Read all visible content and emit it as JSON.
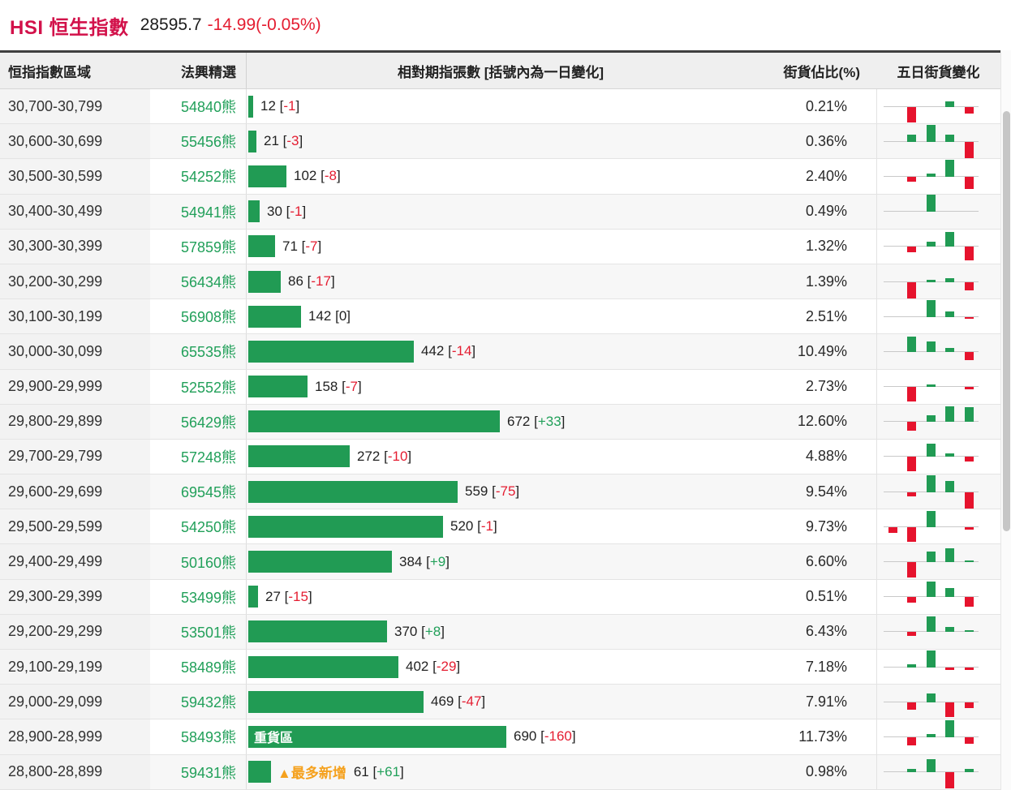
{
  "header": {
    "title": "HSI 恒生指數",
    "price": "28595.7",
    "change": "-14.99(-0.05%)"
  },
  "format": {
    "open": "[",
    "close": "]"
  },
  "table": {
    "columns": [
      "恒指指數區域",
      "法興精選",
      "相對期指張數 [括號內為一日變化]",
      "街貨佔比(%)",
      "五日街貨變化"
    ],
    "rows": [
      {
        "range": "30,700-30,799",
        "code": "54840熊",
        "contracts": 12,
        "change": "-1",
        "pct": "0.21%",
        "spark": [
          0,
          -19,
          0,
          7,
          -8
        ]
      },
      {
        "range": "30,600-30,699",
        "code": "55456熊",
        "contracts": 21,
        "change": "-3",
        "pct": "0.36%",
        "spark": [
          0,
          9,
          21,
          9,
          -21
        ]
      },
      {
        "range": "30,500-30,599",
        "code": "54252熊",
        "contracts": 102,
        "change": "-8",
        "pct": "2.40%",
        "spark": [
          0,
          -6,
          4,
          21,
          -15
        ]
      },
      {
        "range": "30,400-30,499",
        "code": "54941熊",
        "contracts": 30,
        "change": "-1",
        "pct": "0.49%",
        "spark": [
          0,
          0,
          21,
          0,
          0
        ]
      },
      {
        "range": "30,300-30,399",
        "code": "57859熊",
        "contracts": 71,
        "change": "-7",
        "pct": "1.32%",
        "spark": [
          0,
          -7,
          6,
          18,
          -17
        ]
      },
      {
        "range": "30,200-30,299",
        "code": "56434熊",
        "contracts": 86,
        "change": "-17",
        "pct": "1.39%",
        "spark": [
          0,
          -20,
          3,
          5,
          -10
        ]
      },
      {
        "range": "30,100-30,199",
        "code": "56908熊",
        "contracts": 142,
        "change": "0",
        "pct": "2.51%",
        "spark": [
          0,
          0,
          21,
          7,
          -2
        ]
      },
      {
        "range": "30,000-30,099",
        "code": "65535熊",
        "contracts": 442,
        "change": "-14",
        "pct": "10.49%",
        "spark": [
          0,
          19,
          13,
          5,
          -10
        ]
      },
      {
        "range": "29,900-29,999",
        "code": "52552熊",
        "contracts": 158,
        "change": "-7",
        "pct": "2.73%",
        "spark": [
          0,
          -18,
          3,
          0,
          -3
        ]
      },
      {
        "range": "29,800-29,899",
        "code": "56429熊",
        "contracts": 672,
        "change": "+33",
        "pct": "12.60%",
        "spark": [
          0,
          -11,
          8,
          19,
          18
        ]
      },
      {
        "range": "29,700-29,799",
        "code": "57248熊",
        "contracts": 272,
        "change": "-10",
        "pct": "4.88%",
        "spark": [
          0,
          -18,
          16,
          4,
          -6
        ]
      },
      {
        "range": "29,600-29,699",
        "code": "69545熊",
        "contracts": 559,
        "change": "-75",
        "pct": "9.54%",
        "spark": [
          0,
          -5,
          21,
          14,
          -21
        ]
      },
      {
        "range": "29,500-29,599",
        "code": "54250熊",
        "contracts": 520,
        "change": "-1",
        "pct": "9.73%",
        "spark": [
          -7,
          -18,
          20,
          0,
          -3
        ]
      },
      {
        "range": "29,400-29,499",
        "code": "50160熊",
        "contracts": 384,
        "change": "+9",
        "pct": "6.60%",
        "spark": [
          0,
          -19,
          13,
          17,
          2
        ]
      },
      {
        "range": "29,300-29,399",
        "code": "53499熊",
        "contracts": 27,
        "change": "-15",
        "pct": "0.51%",
        "spark": [
          0,
          -7,
          19,
          11,
          -12
        ]
      },
      {
        "range": "29,200-29,299",
        "code": "53501熊",
        "contracts": 370,
        "change": "+8",
        "pct": "6.43%",
        "spark": [
          0,
          -5,
          19,
          6,
          2
        ]
      },
      {
        "range": "29,100-29,199",
        "code": "58489熊",
        "contracts": 402,
        "change": "-29",
        "pct": "7.18%",
        "spark": [
          0,
          4,
          21,
          -3,
          -3
        ]
      },
      {
        "range": "29,000-29,099",
        "code": "59432熊",
        "contracts": 469,
        "change": "-47",
        "pct": "7.91%",
        "spark": [
          0,
          -9,
          11,
          -18,
          -7
        ]
      },
      {
        "range": "28,900-28,999",
        "code": "58493熊",
        "contracts": 690,
        "change": "-160",
        "pct": "11.73%",
        "spark": [
          0,
          -10,
          4,
          21,
          -8
        ],
        "bar_tag": "重貨區"
      },
      {
        "range": "28,800-28,899",
        "code": "59431熊",
        "contracts": 61,
        "change": "+61",
        "pct": "0.98%",
        "spark": [
          0,
          4,
          16,
          -20,
          4
        ],
        "note": "▲最多新增"
      }
    ],
    "max_contracts": 690
  },
  "colors": {
    "title_red": "#d2114a",
    "change_red": "#e41d31",
    "bar_green": "#219b54",
    "text_green": "#22a05a",
    "spark_red": "#e6132d",
    "note_orange": "#f5a11d"
  },
  "chart_data": {
    "type": "bar",
    "orientation": "horizontal",
    "title": "相對期指張數 [括號內為一日變化]",
    "categories": [
      "30,700-30,799",
      "30,600-30,699",
      "30,500-30,599",
      "30,400-30,499",
      "30,300-30,399",
      "30,200-30,299",
      "30,100-30,199",
      "30,000-30,099",
      "29,900-29,999",
      "29,800-29,899",
      "29,700-29,799",
      "29,600-29,699",
      "29,500-29,599",
      "29,400-29,499",
      "29,300-29,399",
      "29,200-29,299",
      "29,100-29,199",
      "29,000-29,099",
      "28,900-28,999",
      "28,800-28,899"
    ],
    "series": [
      {
        "name": "相對期指張數",
        "values": [
          12,
          21,
          102,
          30,
          71,
          86,
          142,
          442,
          158,
          672,
          272,
          559,
          520,
          384,
          27,
          370,
          402,
          469,
          690,
          61
        ]
      },
      {
        "name": "一日變化",
        "values": [
          -1,
          -3,
          -8,
          -1,
          -7,
          -17,
          0,
          -14,
          -7,
          33,
          -10,
          -75,
          -1,
          9,
          -15,
          8,
          -29,
          -47,
          -160,
          61
        ]
      },
      {
        "name": "街貨佔比(%)",
        "values": [
          0.21,
          0.36,
          2.4,
          0.49,
          1.32,
          1.39,
          2.51,
          10.49,
          2.73,
          12.6,
          4.88,
          9.54,
          9.73,
          6.6,
          0.51,
          6.43,
          7.18,
          7.91,
          11.73,
          0.98
        ]
      },
      {
        "name": "法興精選牛熊證",
        "values": [
          "54840熊",
          "55456熊",
          "54252熊",
          "54941熊",
          "57859熊",
          "56434熊",
          "56908熊",
          "65535熊",
          "52552熊",
          "56429熊",
          "57248熊",
          "69545熊",
          "54250熊",
          "50160熊",
          "53499熊",
          "53501熊",
          "58489熊",
          "59432熊",
          "58493熊",
          "59431熊"
        ]
      }
    ],
    "sparkline_series_name": "五日街貨變化",
    "sparklines_relative": [
      [
        0,
        -19,
        0,
        7,
        -8
      ],
      [
        0,
        9,
        21,
        9,
        -21
      ],
      [
        0,
        -6,
        4,
        21,
        -15
      ],
      [
        0,
        0,
        21,
        0,
        0
      ],
      [
        0,
        -7,
        6,
        18,
        -17
      ],
      [
        0,
        -20,
        3,
        5,
        -10
      ],
      [
        0,
        0,
        21,
        7,
        -2
      ],
      [
        0,
        19,
        13,
        5,
        -10
      ],
      [
        0,
        -18,
        3,
        0,
        -3
      ],
      [
        0,
        -11,
        8,
        19,
        18
      ],
      [
        0,
        -18,
        16,
        4,
        -6
      ],
      [
        0,
        -5,
        21,
        14,
        -21
      ],
      [
        -7,
        -18,
        20,
        0,
        -3
      ],
      [
        0,
        -19,
        13,
        17,
        2
      ],
      [
        0,
        -7,
        19,
        11,
        -12
      ],
      [
        0,
        -5,
        19,
        6,
        2
      ],
      [
        0,
        4,
        21,
        -3,
        -3
      ],
      [
        0,
        -9,
        11,
        -18,
        -7
      ],
      [
        0,
        -10,
        4,
        21,
        -8
      ],
      [
        0,
        4,
        16,
        -20,
        4
      ]
    ],
    "annotations": [
      "重貨區 → 28,900-28,999",
      "▲最多新增 → 28,800-28,899"
    ],
    "xlim": [
      0,
      690
    ],
    "grid": false,
    "legend": "none"
  }
}
